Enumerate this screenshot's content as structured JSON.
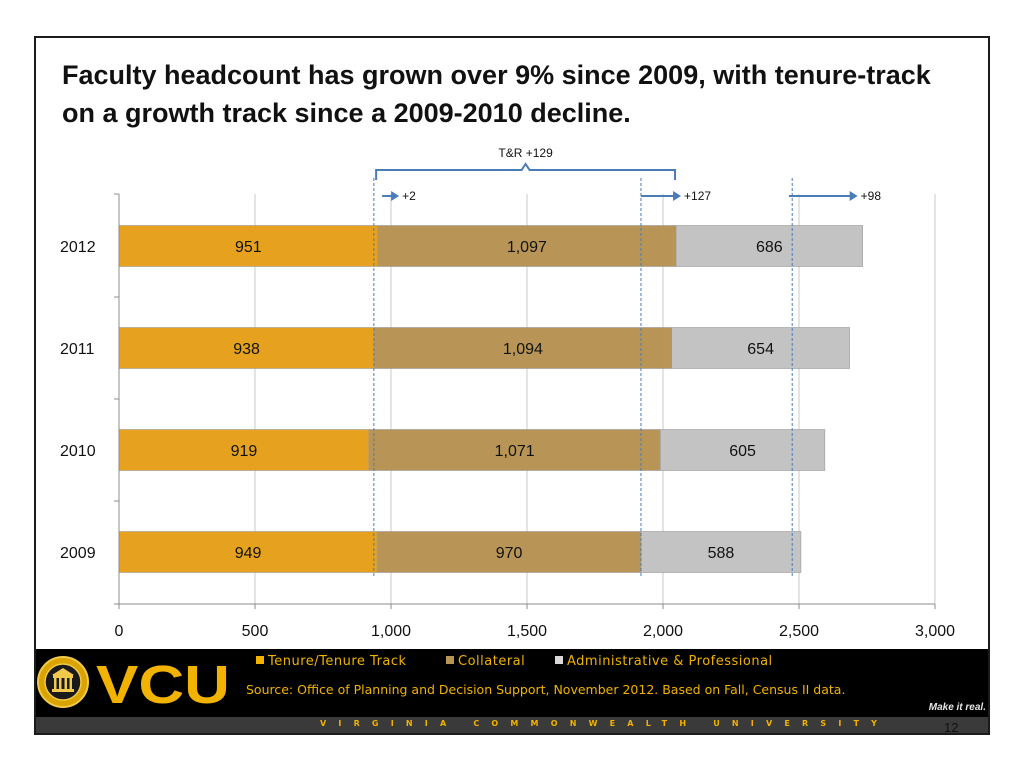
{
  "title": "Faculty headcount has grown over 9% since 2009, with tenure-track on a growth track since a 2009-2010 decline.",
  "chart_data": {
    "type": "bar",
    "orientation": "horizontal",
    "stacked": true,
    "categories": [
      "2012",
      "2011",
      "2010",
      "2009"
    ],
    "series": [
      {
        "name": "Tenure/Tenure Track",
        "values": [
          951,
          938,
          919,
          949
        ],
        "labels": [
          "951",
          "938",
          "919",
          "949"
        ],
        "color": "#e6a21e"
      },
      {
        "name": "Collateral",
        "values": [
          1097,
          1094,
          1071,
          970
        ],
        "labels": [
          "1,097",
          "1,094",
          "1,071",
          "970"
        ],
        "color": "#b89556"
      },
      {
        "name": "Administrative & Professional",
        "values": [
          686,
          654,
          605,
          588
        ],
        "labels": [
          "686",
          "654",
          "605",
          "588"
        ],
        "color": "#c3c3c3"
      }
    ],
    "xlim": [
      0,
      3000
    ],
    "xticks": [
      0,
      500,
      1000,
      1500,
      2000,
      2500,
      3000
    ],
    "xtick_labels": [
      "0",
      "500",
      "1,000",
      "1,500",
      "2,000",
      "2,500",
      "3,000"
    ],
    "grid": true,
    "annotations": {
      "group_label": "T&R +129",
      "group_span": [
        949,
        2048
      ],
      "changes": [
        {
          "label": "+2",
          "from": 949,
          "to": 951
        },
        {
          "label": "+127",
          "from": 1919,
          "to": 2048
        },
        {
          "label": "+98",
          "from": 2507,
          "to": 2734
        }
      ]
    }
  },
  "legend": {
    "tenure": "Tenure/Tenure Track",
    "collateral": "Collateral",
    "admin": "Administrative & Professional"
  },
  "footer": {
    "logo_text": "VCU",
    "source": "Source: Office of Planning and Decision Support, November 2012.  Based on Fall, Census II data.",
    "tagline": "Make it real.",
    "university": "VIRGINIA COMMONWEALTH UNIVERSITY"
  },
  "colors": {
    "accent_gold": "#f2b200",
    "arrow_blue": "#4a7cb5",
    "footer_bg": "#000000"
  },
  "page_number": "12"
}
